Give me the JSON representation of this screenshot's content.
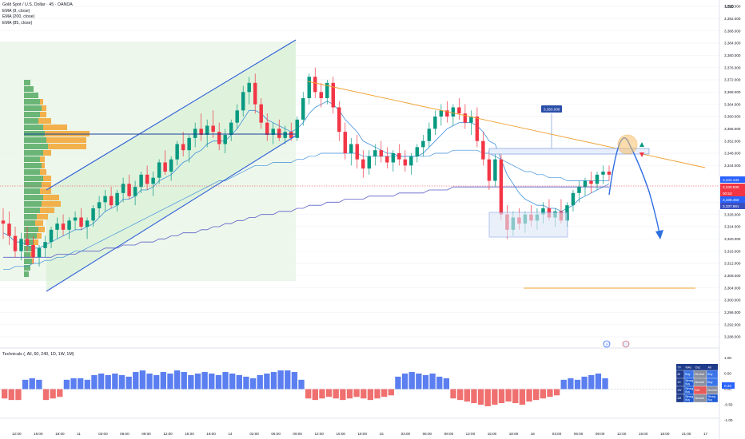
{
  "header": {
    "symbol": "Gold Spot / U.S. Dollar · 45 · OANDA",
    "indicators": [
      "EMA (9, close)",
      "EMA (200, close)",
      "EMA (85, close)"
    ],
    "currency": "USD"
  },
  "price_labels": {
    "last": "3,342.133",
    "current": "3,340.830",
    "countdown": "00:53",
    "ema_mid": "3,338.450",
    "ema_low": "3,337.691",
    "callout": "3,350.008"
  },
  "subpanel": {
    "title": "Technicals (, All, 60, 240, 1D, 1W, 1M)",
    "axis_labels": [
      "1.00",
      "0.50",
      "0.00",
      "-0.50",
      "-1.00"
    ],
    "current_value": "0.33",
    "table": {
      "headers": [
        "TF",
        "MAs",
        "Osc",
        "All"
      ],
      "rows": [
        {
          "tf": "45",
          "mas": "Buy",
          "osc": "Neutral",
          "all": "Buy"
        },
        {
          "tf": "1D",
          "mas": "Strong Buy",
          "osc": "Neutral",
          "all": "Buy"
        },
        {
          "tf": "1W",
          "mas": "Strong Buy",
          "osc": "Sell",
          "all": "Neutral"
        },
        {
          "tf": "1M",
          "mas": "Strong Buy",
          "osc": "Neutral",
          "all": "Strong Buy"
        }
      ]
    }
  },
  "colors": {
    "up": "#089981",
    "down": "#f23645",
    "ema_fast": "#3d8fd9",
    "ema_slow": "#5b5fc7",
    "channel": "#2e5fd8",
    "trendline": "#f0a030",
    "projection": "#2e6fe0",
    "bull_bar": "#5b7ff0",
    "bear_bar": "#f07070",
    "vp_green": "#5cad6a",
    "vp_orange": "#f2a93b"
  },
  "chart_data": {
    "type": "candlestick",
    "y_axis": {
      "range": [
        3286,
        3398
      ],
      "ticks": [
        3396,
        3392,
        3388,
        3384,
        3380,
        3376,
        3372,
        3368,
        3364,
        3360,
        3356,
        3352,
        3348,
        3344,
        3332,
        3328,
        3324,
        3320,
        3316,
        3312,
        3308,
        3304,
        3300,
        3296,
        3292,
        3288
      ],
      "tick_labels": [
        "3,396.000",
        "3,392.000",
        "3,388.000",
        "3,384.000",
        "3,380.000",
        "3,376.000",
        "3,372.000",
        "3,368.000",
        "3,364.000",
        "3,360.000",
        "3,356.000",
        "3,352.000",
        "3,348.000",
        "3,344.000",
        "3,332.000",
        "3,328.000",
        "3,324.000",
        "3,320.000",
        "3,316.000",
        "3,312.000",
        "3,308.000",
        "3,304.000",
        "3,300.000",
        "3,296.000",
        "3,292.000",
        "3,288.000"
      ]
    },
    "x_axis": {
      "tick_labels": [
        "12:00",
        "15:00",
        "18:00",
        "11",
        "03:00",
        "06:00",
        "09:00",
        "12:00",
        "15:00",
        "18:00",
        "13",
        "03:00",
        "06:00",
        "09:00",
        "12:00",
        "15:00",
        "18:00",
        "15",
        "03:00",
        "06:00",
        "09:00",
        "12:00",
        "15:00",
        "18:00",
        "16",
        "03:00",
        "06:00",
        "09:00",
        "12:00",
        "15:00",
        "18:00",
        "21:00",
        "17"
      ]
    },
    "candles": [
      [
        3326,
        3330,
        3320,
        3325
      ],
      [
        3325,
        3329,
        3318,
        3321
      ],
      [
        3321,
        3324,
        3314,
        3316
      ],
      [
        3316,
        3322,
        3313,
        3320
      ],
      [
        3320,
        3324,
        3316,
        3318
      ],
      [
        3318,
        3321,
        3312,
        3314
      ],
      [
        3314,
        3318,
        3311,
        3317
      ],
      [
        3317,
        3321,
        3314,
        3319
      ],
      [
        3319,
        3324,
        3317,
        3323
      ],
      [
        3323,
        3327,
        3320,
        3325
      ],
      [
        3325,
        3328,
        3321,
        3323
      ],
      [
        3323,
        3327,
        3320,
        3326
      ],
      [
        3326,
        3329,
        3323,
        3327
      ],
      [
        3327,
        3330,
        3323,
        3324
      ],
      [
        3324,
        3327,
        3320,
        3326
      ],
      [
        3326,
        3331,
        3324,
        3330
      ],
      [
        3330,
        3334,
        3327,
        3332
      ],
      [
        3332,
        3336,
        3329,
        3334
      ],
      [
        3334,
        3337,
        3330,
        3331
      ],
      [
        3331,
        3336,
        3329,
        3335
      ],
      [
        3335,
        3340,
        3332,
        3338
      ],
      [
        3338,
        3341,
        3333,
        3334
      ],
      [
        3334,
        3339,
        3331,
        3337
      ],
      [
        3337,
        3342,
        3335,
        3341
      ],
      [
        3341,
        3344,
        3336,
        3338
      ],
      [
        3338,
        3342,
        3334,
        3340
      ],
      [
        3340,
        3346,
        3338,
        3345
      ],
      [
        3345,
        3349,
        3341,
        3342
      ],
      [
        3342,
        3347,
        3339,
        3346
      ],
      [
        3346,
        3352,
        3344,
        3351
      ],
      [
        3351,
        3355,
        3347,
        3349
      ],
      [
        3349,
        3354,
        3345,
        3353
      ],
      [
        3353,
        3358,
        3350,
        3356
      ],
      [
        3356,
        3361,
        3352,
        3354
      ],
      [
        3354,
        3359,
        3350,
        3357
      ],
      [
        3357,
        3362,
        3353,
        3355
      ],
      [
        3355,
        3358,
        3349,
        3351
      ],
      [
        3351,
        3356,
        3348,
        3354
      ],
      [
        3354,
        3359,
        3352,
        3358
      ],
      [
        3358,
        3364,
        3356,
        3362
      ],
      [
        3362,
        3370,
        3360,
        3368
      ],
      [
        3368,
        3373,
        3364,
        3371
      ],
      [
        3371,
        3374,
        3361,
        3364
      ],
      [
        3364,
        3366,
        3356,
        3358
      ],
      [
        3358,
        3361,
        3352,
        3354
      ],
      [
        3354,
        3358,
        3351,
        3356
      ],
      [
        3356,
        3359,
        3352,
        3353
      ],
      [
        3353,
        3357,
        3351,
        3355
      ],
      [
        3355,
        3358,
        3352,
        3353
      ],
      [
        3353,
        3360,
        3352,
        3359
      ],
      [
        3359,
        3368,
        3357,
        3366
      ],
      [
        3366,
        3374,
        3364,
        3373
      ],
      [
        3373,
        3376,
        3366,
        3368
      ],
      [
        3368,
        3371,
        3363,
        3366
      ],
      [
        3366,
        3372,
        3364,
        3371
      ],
      [
        3371,
        3373,
        3361,
        3363
      ],
      [
        3363,
        3365,
        3352,
        3355
      ],
      [
        3355,
        3358,
        3346,
        3348
      ],
      [
        3348,
        3353,
        3344,
        3351
      ],
      [
        3351,
        3354,
        3343,
        3346
      ],
      [
        3346,
        3349,
        3340,
        3343
      ],
      [
        3343,
        3349,
        3341,
        3347
      ],
      [
        3347,
        3351,
        3344,
        3349
      ],
      [
        3349,
        3352,
        3345,
        3347
      ],
      [
        3347,
        3350,
        3343,
        3345
      ],
      [
        3345,
        3349,
        3342,
        3348
      ],
      [
        3348,
        3351,
        3344,
        3346
      ],
      [
        3346,
        3349,
        3342,
        3344
      ],
      [
        3344,
        3348,
        3341,
        3347
      ],
      [
        3347,
        3351,
        3345,
        3350
      ],
      [
        3350,
        3354,
        3347,
        3352
      ],
      [
        3352,
        3358,
        3350,
        3356
      ],
      [
        3356,
        3362,
        3354,
        3360
      ],
      [
        3360,
        3364,
        3357,
        3362
      ],
      [
        3362,
        3365,
        3358,
        3360
      ],
      [
        3360,
        3364,
        3357,
        3363
      ],
      [
        3363,
        3366,
        3359,
        3361
      ],
      [
        3361,
        3364,
        3356,
        3358
      ],
      [
        3358,
        3362,
        3354,
        3360
      ],
      [
        3360,
        3363,
        3350,
        3352
      ],
      [
        3352,
        3355,
        3344,
        3346
      ],
      [
        3346,
        3349,
        3336,
        3339
      ],
      [
        3339,
        3348,
        3337,
        3346
      ],
      [
        3346,
        3348,
        3326,
        3328
      ],
      [
        3328,
        3331,
        3320,
        3323
      ],
      [
        3323,
        3329,
        3321,
        3327
      ],
      [
        3327,
        3330,
        3323,
        3325
      ],
      [
        3325,
        3329,
        3322,
        3328
      ],
      [
        3328,
        3331,
        3324,
        3326
      ],
      [
        3326,
        3330,
        3323,
        3328
      ],
      [
        3328,
        3332,
        3325,
        3330
      ],
      [
        3330,
        3333,
        3326,
        3327
      ],
      [
        3327,
        3330,
        3324,
        3329
      ],
      [
        3329,
        3333,
        3325,
        3326
      ],
      [
        3326,
        3332,
        3324,
        3331
      ],
      [
        3331,
        3336,
        3329,
        3335
      ],
      [
        3335,
        3339,
        3332,
        3337
      ],
      [
        3337,
        3340,
        3334,
        3339
      ],
      [
        3339,
        3342,
        3335,
        3338
      ],
      [
        3338,
        3342,
        3336,
        3341
      ],
      [
        3341,
        3344,
        3338,
        3342
      ],
      [
        3342,
        3344,
        3339,
        3341
      ]
    ],
    "ema_fast": [
      3322,
      3321,
      3319,
      3319,
      3318,
      3317,
      3317,
      3318,
      3319,
      3320,
      3321,
      3322,
      3323,
      3323,
      3324,
      3325,
      3327,
      3329,
      3330,
      3331,
      3333,
      3333,
      3334,
      3336,
      3336,
      3337,
      3339,
      3340,
      3341,
      3343,
      3345,
      3346,
      3348,
      3349,
      3351,
      3352,
      3352,
      3352,
      3354,
      3356,
      3359,
      3362,
      3362,
      3361,
      3359,
      3358,
      3357,
      3356,
      3355,
      3356,
      3358,
      3361,
      3363,
      3364,
      3365,
      3364,
      3362,
      3359,
      3357,
      3355,
      3352,
      3351,
      3350,
      3349,
      3348,
      3348,
      3347,
      3347,
      3347,
      3347,
      3348,
      3350,
      3352,
      3354,
      3356,
      3357,
      3358,
      3358,
      3358,
      3357,
      3355,
      3352,
      3351,
      3346,
      3341,
      3338,
      3335,
      3333,
      3332,
      3331,
      3331,
      3330,
      3330,
      3329,
      3330,
      3331,
      3333,
      3334,
      3335,
      3336,
      3337,
      3338
    ],
    "ema_mid_series": [
      3310,
      3310,
      3311,
      3311,
      3311,
      3312,
      3312,
      3313,
      3313,
      3314,
      3314,
      3315,
      3316,
      3316,
      3317,
      3318,
      3319,
      3320,
      3321,
      3322,
      3323,
      3324,
      3325,
      3326,
      3327,
      3328,
      3329,
      3330,
      3331,
      3332,
      3333,
      3334,
      3335,
      3336,
      3337,
      3338,
      3339,
      3339,
      3340,
      3341,
      3342,
      3343,
      3344,
      3344,
      3344,
      3345,
      3345,
      3345,
      3345,
      3346,
      3346,
      3347,
      3347,
      3348,
      3348,
      3348,
      3348,
      3348,
      3348,
      3348,
      3347,
      3347,
      3347,
      3347,
      3347,
      3347,
      3347,
      3347,
      3347,
      3347,
      3347,
      3347,
      3348,
      3348,
      3348,
      3349,
      3349,
      3349,
      3349,
      3349,
      3348,
      3348,
      3347,
      3346,
      3345,
      3344,
      3343,
      3342,
      3342,
      3341,
      3341,
      3340,
      3340,
      3340,
      3339,
      3339,
      3339,
      3339,
      3339,
      3339,
      3339,
      3339
    ],
    "ema_slow_series": [
      3314,
      3314,
      3314,
      3314,
      3314,
      3314,
      3314,
      3314,
      3314,
      3315,
      3315,
      3315,
      3315,
      3316,
      3316,
      3316,
      3316,
      3317,
      3317,
      3317,
      3318,
      3318,
      3318,
      3319,
      3319,
      3319,
      3320,
      3320,
      3321,
      3321,
      3322,
      3322,
      3322,
      3323,
      3323,
      3324,
      3324,
      3325,
      3325,
      3326,
      3326,
      3327,
      3327,
      3328,
      3328,
      3328,
      3329,
      3329,
      3329,
      3330,
      3330,
      3331,
      3331,
      3331,
      3332,
      3332,
      3332,
      3333,
      3333,
      3333,
      3333,
      3334,
      3334,
      3334,
      3334,
      3334,
      3335,
      3335,
      3335,
      3335,
      3335,
      3336,
      3336,
      3336,
      3336,
      3337,
      3337,
      3337,
      3337,
      3337,
      3337,
      3337,
      3337,
      3337,
      3337,
      3337,
      3337,
      3337,
      3337,
      3337,
      3337,
      3337,
      3337,
      3337,
      3337,
      3337,
      3337,
      3337,
      3337,
      3337,
      3337,
      3337
    ],
    "technicals": [
      -0.3,
      -0.35,
      -0.35,
      0.3,
      0.35,
      0.3,
      -0.35,
      -0.3,
      -0.25,
      0.3,
      0.35,
      0.35,
      0.3,
      0.45,
      0.5,
      0.45,
      0.5,
      0.45,
      0.4,
      0.55,
      0.6,
      0.5,
      0.45,
      0.55,
      0.5,
      0.6,
      0.55,
      0.45,
      0.5,
      0.55,
      0.5,
      0.45,
      0.55,
      0.5,
      0.45,
      0.4,
      0.35,
      0.45,
      0.5,
      0.55,
      0.6,
      0.6,
      0.55,
      0.3,
      -0.3,
      -0.35,
      -0.3,
      -0.25,
      -0.3,
      -0.35,
      -0.3,
      -0.25,
      -0.3,
      -0.35,
      -0.3,
      -0.25,
      -0.2,
      0.4,
      0.5,
      0.55,
      0.5,
      0.45,
      0.5,
      0.4,
      0.35,
      -0.3,
      -0.35,
      -0.4,
      -0.45,
      -0.5,
      -0.55,
      -0.5,
      -0.45,
      -0.4,
      -0.45,
      -0.5,
      -0.4,
      -0.35,
      -0.3,
      -0.25,
      -0.2,
      0.3,
      0.35,
      0.3,
      0.4,
      0.45,
      0.5,
      0.35
    ]
  }
}
